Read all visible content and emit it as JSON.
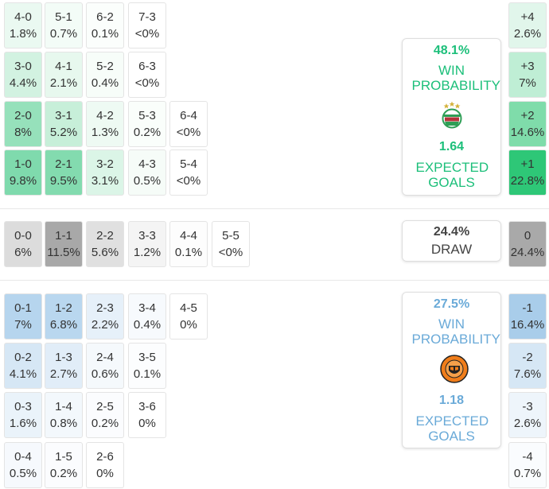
{
  "home_scores": [
    {
      "score": "4-0",
      "pct": "1.8%",
      "col": 0,
      "row": 0,
      "bg": "#eaf9f1"
    },
    {
      "score": "5-1",
      "pct": "0.7%",
      "col": 1,
      "row": 0,
      "bg": "#f3fcf7"
    },
    {
      "score": "6-2",
      "pct": "0.1%",
      "col": 2,
      "row": 0,
      "bg": "#fbfefc"
    },
    {
      "score": "7-3",
      "pct": "<0%",
      "col": 3,
      "row": 0,
      "bg": "#ffffff"
    },
    {
      "score": "3-0",
      "pct": "4.4%",
      "col": 0,
      "row": 1,
      "bg": "#d2f2e1"
    },
    {
      "score": "4-1",
      "pct": "2.1%",
      "col": 1,
      "row": 1,
      "bg": "#e7f8ee"
    },
    {
      "score": "5-2",
      "pct": "0.4%",
      "col": 2,
      "row": 1,
      "bg": "#f7fdf9"
    },
    {
      "score": "6-3",
      "pct": "<0%",
      "col": 3,
      "row": 1,
      "bg": "#ffffff"
    },
    {
      "score": "2-0",
      "pct": "8%",
      "col": 0,
      "row": 2,
      "bg": "#96e1bb"
    },
    {
      "score": "3-1",
      "pct": "5.2%",
      "col": 1,
      "row": 2,
      "bg": "#c7efd9"
    },
    {
      "score": "4-2",
      "pct": "1.3%",
      "col": 2,
      "row": 2,
      "bg": "#eefaf3"
    },
    {
      "score": "5-3",
      "pct": "0.2%",
      "col": 3,
      "row": 2,
      "bg": "#fafefb"
    },
    {
      "score": "6-4",
      "pct": "<0%",
      "col": 4,
      "row": 2,
      "bg": "#ffffff"
    },
    {
      "score": "1-0",
      "pct": "9.8%",
      "col": 0,
      "row": 3,
      "bg": "#7fdaad"
    },
    {
      "score": "2-1",
      "pct": "9.5%",
      "col": 1,
      "row": 3,
      "bg": "#83dbaf"
    },
    {
      "score": "3-2",
      "pct": "3.1%",
      "col": 2,
      "row": 3,
      "bg": "#dbf5e7"
    },
    {
      "score": "4-3",
      "pct": "0.5%",
      "col": 3,
      "row": 3,
      "bg": "#f6fcf8"
    },
    {
      "score": "5-4",
      "pct": "<0%",
      "col": 4,
      "row": 3,
      "bg": "#ffffff"
    }
  ],
  "draw_scores": [
    {
      "score": "0-0",
      "pct": "6%",
      "col": 0,
      "bg": "#dcdcdc"
    },
    {
      "score": "1-1",
      "pct": "11.5%",
      "col": 1,
      "bg": "#a8a8a8"
    },
    {
      "score": "2-2",
      "pct": "5.6%",
      "col": 2,
      "bg": "#e0e0e0"
    },
    {
      "score": "3-3",
      "pct": "1.2%",
      "col": 3,
      "bg": "#f4f4f4"
    },
    {
      "score": "4-4",
      "pct": "0.1%",
      "col": 4,
      "bg": "#fdfdfd"
    },
    {
      "score": "5-5",
      "pct": "<0%",
      "col": 5,
      "bg": "#ffffff"
    }
  ],
  "away_scores": [
    {
      "score": "0-1",
      "pct": "7%",
      "col": 0,
      "row": 0,
      "bg": "#b6d5ee"
    },
    {
      "score": "1-2",
      "pct": "6.8%",
      "col": 1,
      "row": 0,
      "bg": "#b9d7ef"
    },
    {
      "score": "2-3",
      "pct": "2.2%",
      "col": 2,
      "row": 0,
      "bg": "#e6f0f9"
    },
    {
      "score": "3-4",
      "pct": "0.4%",
      "col": 3,
      "row": 0,
      "bg": "#f7fafd"
    },
    {
      "score": "4-5",
      "pct": "0%",
      "col": 4,
      "row": 0,
      "bg": "#ffffff"
    },
    {
      "score": "0-2",
      "pct": "4.1%",
      "col": 0,
      "row": 1,
      "bg": "#d6e7f5"
    },
    {
      "score": "1-3",
      "pct": "2.7%",
      "col": 1,
      "row": 1,
      "bg": "#e1edf8"
    },
    {
      "score": "2-4",
      "pct": "0.6%",
      "col": 2,
      "row": 1,
      "bg": "#f5f9fc"
    },
    {
      "score": "3-5",
      "pct": "0.1%",
      "col": 3,
      "row": 1,
      "bg": "#fcfdfe"
    },
    {
      "score": "0-3",
      "pct": "1.6%",
      "col": 0,
      "row": 2,
      "bg": "#eaf3fa"
    },
    {
      "score": "1-4",
      "pct": "0.8%",
      "col": 1,
      "row": 2,
      "bg": "#f3f8fc"
    },
    {
      "score": "2-5",
      "pct": "0.2%",
      "col": 2,
      "row": 2,
      "bg": "#fbfcfe"
    },
    {
      "score": "3-6",
      "pct": "0%",
      "col": 3,
      "row": 2,
      "bg": "#ffffff"
    },
    {
      "score": "0-4",
      "pct": "0.5%",
      "col": 0,
      "row": 3,
      "bg": "#f6f9fd"
    },
    {
      "score": "1-5",
      "pct": "0.2%",
      "col": 1,
      "row": 3,
      "bg": "#fbfcfe"
    },
    {
      "score": "2-6",
      "pct": "0%",
      "col": 2,
      "row": 3,
      "bg": "#ffffff"
    }
  ],
  "home_margins": [
    {
      "margin": "+4",
      "pct": "2.6%",
      "bg": "#e1f6eb"
    },
    {
      "margin": "+3",
      "pct": "7%",
      "bg": "#bfeed5"
    },
    {
      "margin": "+2",
      "pct": "14.6%",
      "bg": "#7fdcaa"
    },
    {
      "margin": "+1",
      "pct": "22.8%",
      "bg": "#2ec777"
    }
  ],
  "draw_margin": {
    "margin": "0",
    "pct": "24.4%",
    "bg": "#a9a9a9"
  },
  "away_margins": [
    {
      "margin": "-1",
      "pct": "16.4%",
      "bg": "#a9cdea"
    },
    {
      "margin": "-2",
      "pct": "7.6%",
      "bg": "#d6e7f5"
    },
    {
      "margin": "-3",
      "pct": "2.6%",
      "bg": "#eef5fb"
    },
    {
      "margin": "-4",
      "pct": "0.7%",
      "bg": "#fafcfe"
    }
  ],
  "home_card": {
    "win_pct": "48.1%",
    "win_label": "WIN PROBABILITY",
    "xg": "1.64",
    "xg_label": "EXPECTED GOALS",
    "color": "#1cbf7a",
    "crest_icon": "rapid-wien-crest-icon"
  },
  "draw_card": {
    "pct": "24.4%",
    "label": "DRAW"
  },
  "away_card": {
    "win_pct": "27.5%",
    "win_label": "WIN PROBABILITY",
    "xg": "1.18",
    "xg_label": "EXPECTED GOALS",
    "color": "#6aaad8",
    "crest_icon": "dundee-united-crest-icon"
  }
}
